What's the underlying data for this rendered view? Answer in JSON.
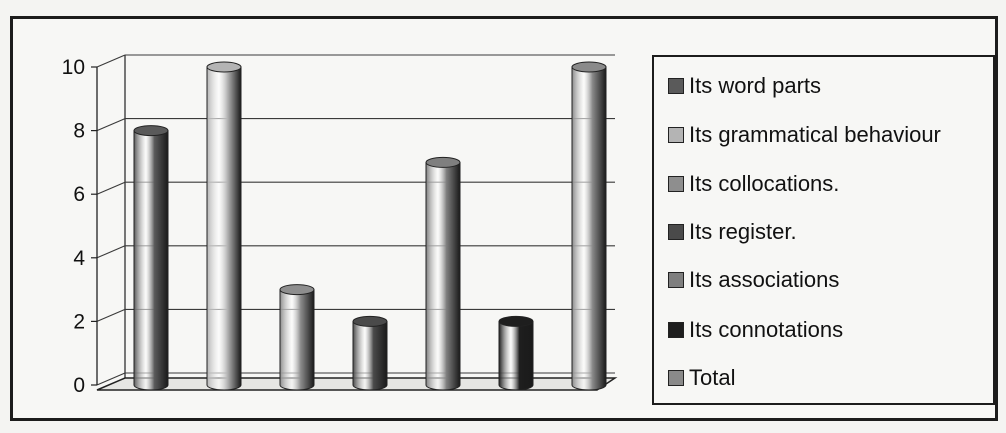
{
  "chart_data": {
    "type": "bar",
    "style": "3d-cylinder",
    "categories": [
      "Its  word parts",
      "Its  grammatical behaviour",
      "Its collocations.",
      "Its register.",
      "Its associations",
      "Its connotations",
      "Total"
    ],
    "values": [
      8,
      10,
      3,
      2,
      7,
      2,
      10
    ],
    "colors": [
      "#5a5a5a",
      "#b4b4b4",
      "#8e8e8e",
      "#4a4a4a",
      "#7f7f7f",
      "#1e1e1e",
      "#8a8a8a"
    ],
    "y_ticks": [
      "0",
      "2",
      "4",
      "6",
      "8",
      "10"
    ],
    "ylim": [
      0,
      10
    ],
    "grid": true,
    "legend_position": "right"
  }
}
